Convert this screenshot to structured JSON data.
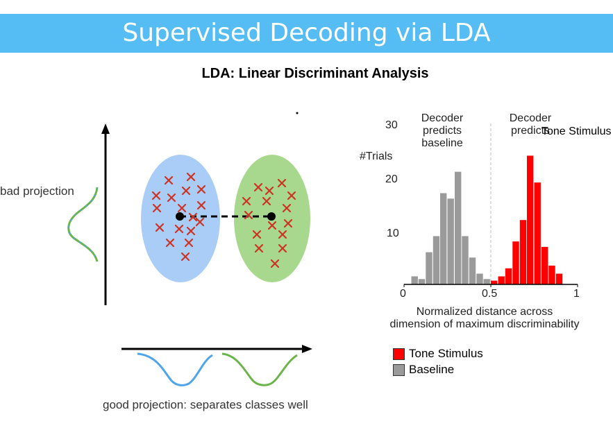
{
  "slide": {
    "title": "Supervised Decoding via LDA",
    "subtitle": "LDA: Linear Discriminant Analysis"
  },
  "lda_diagram": {
    "bad_projection_label": "bad projection",
    "good_projection_label": "good projection: separates classes well",
    "class_a_color": "#a9cdf7",
    "class_b_color": "#a8d88d",
    "marker_color": "#cc3322",
    "curve_blue": "#4ea5e9",
    "curve_green": "#6ab44b"
  },
  "histogram": {
    "ylabel": "#Trials",
    "xlabel_line1": "Normalized distance across",
    "xlabel_line2": "dimension of maximum discriminability",
    "annotation_baseline": "Decoder predicts baseline",
    "annotation_tone_1": "Decoder predicts",
    "annotation_tone_2": "Tone Stimulus",
    "legend": [
      {
        "label": "Tone Stimulus",
        "color": "#ff0000"
      },
      {
        "label": "Baseline",
        "color": "#9a9a9a"
      }
    ]
  },
  "chart_data": {
    "type": "bar",
    "xlabel": "Normalized distance across dimension of maximum discriminability",
    "ylabel": "#Trials",
    "xlim": [
      0,
      1
    ],
    "ylim": [
      0,
      30
    ],
    "xticks": [
      "0",
      "0.5",
      "1"
    ],
    "yticks": [
      "10",
      "20",
      "30"
    ],
    "threshold": 0.5,
    "bin_width": 0.0417,
    "series": [
      {
        "name": "Baseline",
        "color": "#9a9a9a",
        "x": [
          0.063,
          0.104,
          0.146,
          0.188,
          0.229,
          0.271,
          0.313,
          0.354,
          0.396,
          0.438,
          0.479
        ],
        "values": [
          1.5,
          1,
          6,
          9,
          17,
          16,
          21,
          9,
          5,
          2,
          1
        ]
      },
      {
        "name": "Tone Stimulus",
        "color": "#ff0000",
        "x": [
          0.521,
          0.563,
          0.604,
          0.646,
          0.688,
          0.729,
          0.771,
          0.813,
          0.854,
          0.896
        ],
        "values": [
          0.7,
          1.5,
          3,
          8,
          12,
          24,
          19,
          7,
          3.5,
          2
        ]
      }
    ]
  }
}
